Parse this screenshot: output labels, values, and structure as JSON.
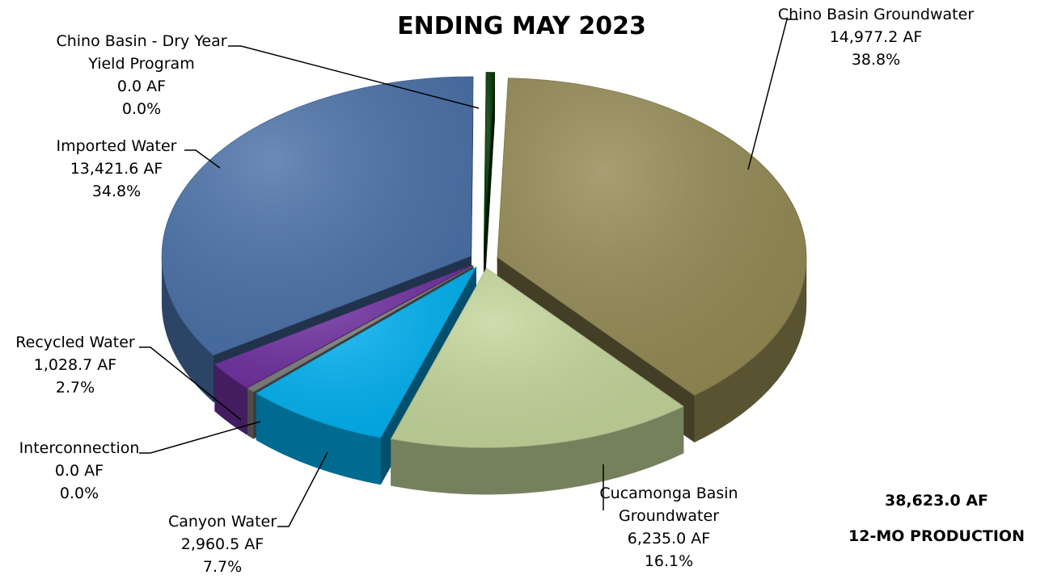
{
  "chart_data": {
    "type": "pie",
    "title": "ENDING MAY 2023",
    "unit": "AF",
    "total_value": "38,623.0 AF",
    "total_label": "12-MO PRODUCTION",
    "slices": [
      {
        "label_lines": [
          "Chino Basin Groundwater"
        ],
        "value": 14977.2,
        "value_text": "14,977.2 AF",
        "percent_text": "38.8%",
        "color": "#948A54"
      },
      {
        "label_lines": [
          "Cucamonga Basin",
          "Groundwater"
        ],
        "value": 6235.0,
        "value_text": "6,235.0 AF",
        "percent_text": "16.1%",
        "color": "#C3D69B"
      },
      {
        "label_lines": [
          "Canyon Water"
        ],
        "value": 2960.5,
        "value_text": "2,960.5 AF",
        "percent_text": "7.7%",
        "color": "#00B0F0"
      },
      {
        "label_lines": [
          "Interconnection"
        ],
        "value": 0.0,
        "value_text": "0.0 AF",
        "percent_text": "0.0%",
        "color": "#7F7F7F"
      },
      {
        "label_lines": [
          "Recycled Water"
        ],
        "value": 1028.7,
        "value_text": "1,028.7 AF",
        "percent_text": "2.7%",
        "color": "#7030A0"
      },
      {
        "label_lines": [
          "Imported Water"
        ],
        "value": 13421.6,
        "value_text": "13,421.6 AF",
        "percent_text": "34.8%",
        "color": "#4A71A8"
      },
      {
        "label_lines": [
          "Chino Basin - Dry Year",
          "Yield Program"
        ],
        "value": 0.0,
        "value_text": "0.0 AF",
        "percent_text": "0.0%",
        "color": "#003300"
      }
    ]
  }
}
